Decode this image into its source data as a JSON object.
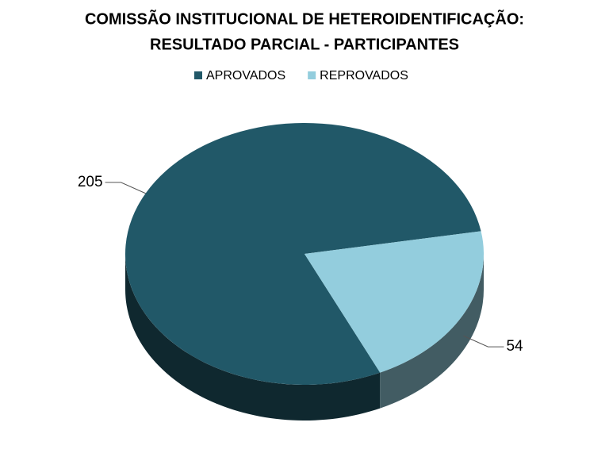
{
  "chart_data": {
    "type": "pie",
    "title": [
      "COMISSÃO INSTITUCIONAL DE HETEROIDENTIFICAÇÃO:",
      "RESULTADO PARCIAL - PARTICIPANTES"
    ],
    "categories": [
      "APROVADOS",
      "REPROVADOS"
    ],
    "values": [
      205,
      54
    ],
    "colors": [
      "#215868",
      "#93cddd"
    ],
    "legend": "top"
  }
}
